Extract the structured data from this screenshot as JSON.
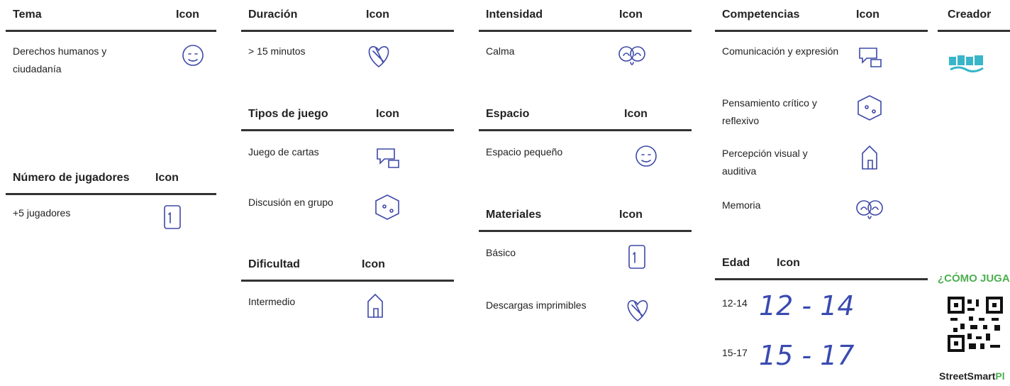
{
  "tables": {
    "tema": {
      "title": "Tema",
      "icon_header": "Icon",
      "rows": [
        {
          "text": "Derechos humanos y ciudadanía"
        }
      ]
    },
    "jugadores": {
      "title": "Número de jugadores",
      "icon_header": "Icon",
      "rows": [
        {
          "text": "+5 jugadores"
        }
      ]
    },
    "duracion": {
      "title": "Duración",
      "icon_header": "Icon",
      "rows": [
        {
          "text": "> 15 minutos"
        }
      ]
    },
    "tipos": {
      "title": "Tipos de juego",
      "icon_header": "Icon",
      "rows": [
        {
          "text": "Juego de cartas"
        },
        {
          "text": "Discusión en grupo"
        }
      ]
    },
    "dificultad": {
      "title": "Dificultad",
      "icon_header": "Icon",
      "rows": [
        {
          "text": "Intermedio"
        }
      ]
    },
    "intensidad": {
      "title": "Intensidad",
      "icon_header": "Icon",
      "rows": [
        {
          "text": "Calma"
        }
      ]
    },
    "espacio": {
      "title": "Espacio",
      "icon_header": "Icon",
      "rows": [
        {
          "text": "Espacio pequeño"
        }
      ]
    },
    "materiales": {
      "title": "Materiales",
      "icon_header": "Icon",
      "rows": [
        {
          "text": "Básico"
        },
        {
          "text": "Descargas imprimibles"
        }
      ]
    },
    "competencias": {
      "title": "Competencias",
      "icon_header": "Icon",
      "rows": [
        {
          "text": "Comunicación y expresión"
        },
        {
          "text": "Pensamiento crítico y reflexivo"
        },
        {
          "text": "Percepción visual y auditiva"
        },
        {
          "text": "Memoria"
        }
      ]
    },
    "edad": {
      "title": "Edad",
      "icon_header": "Icon",
      "rows": [
        {
          "text": "12-14",
          "icon_text": "12 - 14"
        },
        {
          "text": "15-17",
          "icon_text": "15 - 17"
        }
      ]
    }
  },
  "creador": {
    "title": "Creador"
  },
  "como_jugar": {
    "title": "¿CÓMO JUGAR",
    "brand": "StreetSmart",
    "brand_accent": "Pl"
  }
}
